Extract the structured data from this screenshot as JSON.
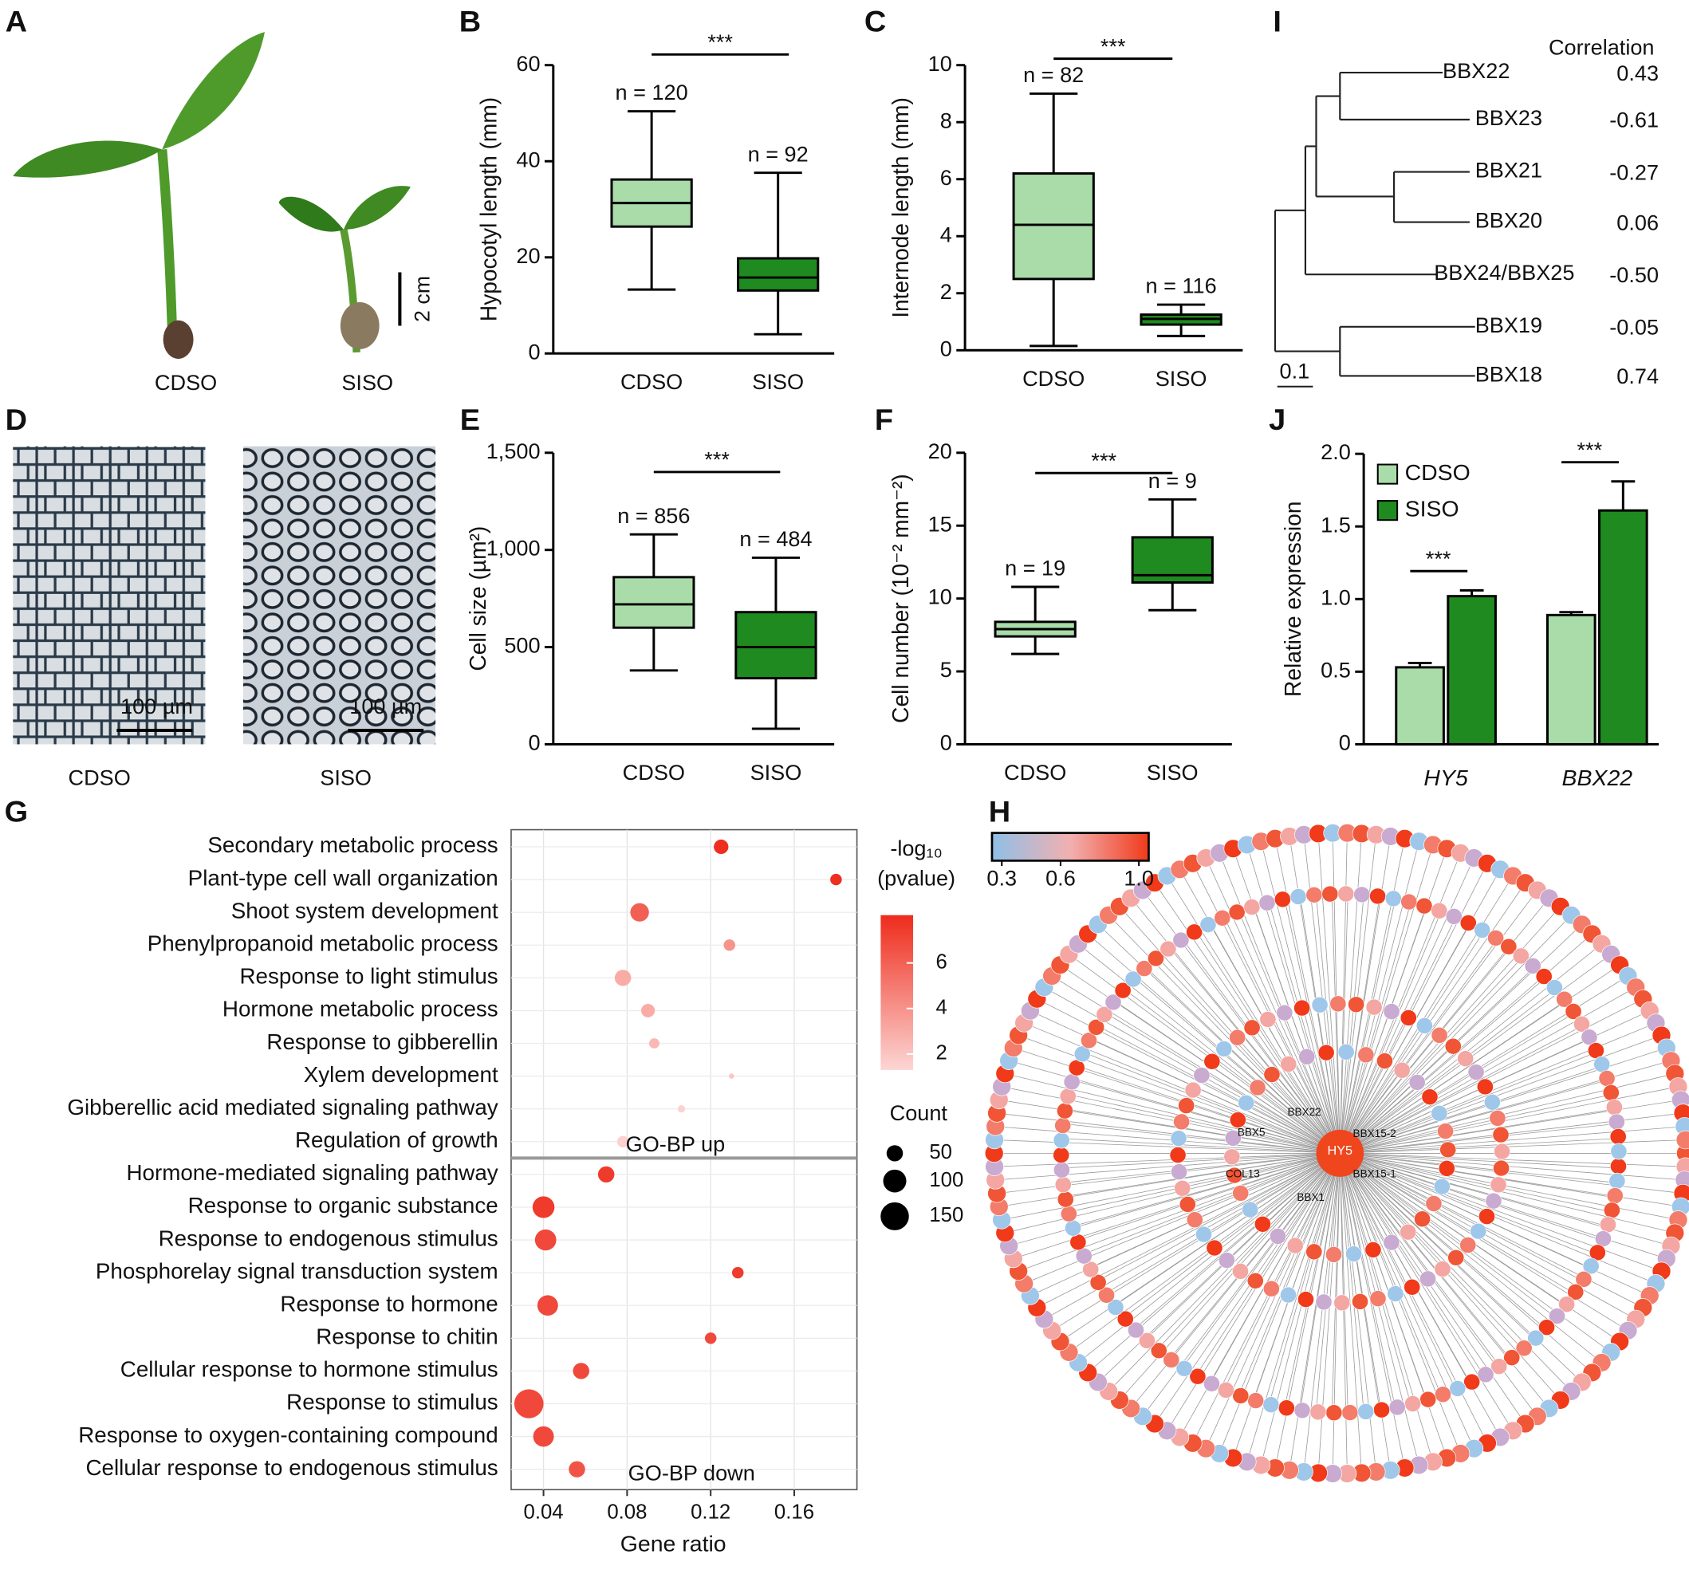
{
  "panels": [
    "A",
    "B",
    "C",
    "D",
    "E",
    "F",
    "G",
    "H",
    "I",
    "J"
  ],
  "panel_A": {
    "labels": [
      "CDSO",
      "SISO"
    ],
    "scale": "2 cm"
  },
  "panel_D": {
    "labels": [
      "CDSO",
      "SISO"
    ],
    "scales": [
      "100 µm",
      "100 µm"
    ]
  },
  "chart_data": [
    {
      "type": "box",
      "y_label": "Hypocotyl length (mm)",
      "categories": [
        "CDSO",
        "SISO"
      ],
      "colors": [
        "#a9dca9",
        "#1f8a1f"
      ],
      "boxes": [
        {
          "min": 13.3,
          "q1": 26.4,
          "median": 31.3,
          "q3": 36.2,
          "max": 50.4
        },
        {
          "min": 4,
          "q1": 13.1,
          "median": 15.8,
          "q3": 19.8,
          "max": 37.6
        }
      ],
      "n_labels": [
        "n = 120",
        "n = 92"
      ],
      "significance": "***",
      "ylim": [
        0,
        60
      ],
      "yticks": [
        0,
        20,
        40,
        60
      ]
    },
    {
      "type": "box",
      "y_label": "Internode length (mm)",
      "categories": [
        "CDSO",
        "SISO"
      ],
      "colors": [
        "#a9dca9",
        "#1f8a1f"
      ],
      "boxes": [
        {
          "min": 0.15,
          "q1": 2.5,
          "median": 4.4,
          "q3": 6.2,
          "max": 9
        },
        {
          "min": 0.5,
          "q1": 0.9,
          "median": 1.1,
          "q3": 1.25,
          "max": 1.6
        }
      ],
      "n_labels": [
        "n = 82",
        "n = 116"
      ],
      "significance": "***",
      "ylim": [
        0,
        10
      ],
      "yticks": [
        0,
        2,
        4,
        6,
        8,
        10
      ]
    },
    {
      "type": "box",
      "y_label": "Cell size (µm²)",
      "categories": [
        "CDSO",
        "SISO"
      ],
      "colors": [
        "#a9dca9",
        "#1f8a1f"
      ],
      "boxes": [
        {
          "min": 380,
          "q1": 600,
          "median": 720,
          "q3": 860,
          "max": 1080
        },
        {
          "min": 80,
          "q1": 340,
          "median": 500,
          "q3": 680,
          "max": 960
        }
      ],
      "n_labels": [
        "n = 856",
        "n = 484"
      ],
      "significance": "***",
      "ylim": [
        0,
        1500
      ],
      "yticks": [
        0,
        500,
        {
          "value": 1000,
          "label": "1,000"
        },
        {
          "value": 1500,
          "label": "1,500"
        }
      ]
    },
    {
      "type": "box",
      "y_label": "Cell number (10⁻² mm⁻²)",
      "categories": [
        "CDSO",
        "SISO"
      ],
      "colors": [
        "#a9dca9",
        "#1f8a1f"
      ],
      "boxes": [
        {
          "min": 6.2,
          "q1": 7.4,
          "median": 7.9,
          "q3": 8.4,
          "max": 10.8
        },
        {
          "min": 9.2,
          "q1": 11.1,
          "median": 11.6,
          "q3": 14.2,
          "max": 16.8
        }
      ],
      "n_labels": [
        "n = 19",
        "n = 9"
      ],
      "significance": "***",
      "ylim": [
        0,
        20
      ],
      "yticks": [
        0,
        5,
        10,
        15,
        20
      ]
    },
    {
      "type": "bar",
      "y_label": "Relative expression",
      "categories": [
        "HY5",
        "BBX22"
      ],
      "series": [
        {
          "name": "CDSO",
          "color": "#a9dca9",
          "values": [
            0.53,
            0.89
          ],
          "errors": [
            0.03,
            0.02
          ]
        },
        {
          "name": "SISO",
          "color": "#1f8a1f",
          "values": [
            1.02,
            1.61
          ],
          "errors": [
            0.04,
            0.2
          ]
        }
      ],
      "significance": [
        "***",
        "***"
      ],
      "ylim": [
        0,
        2
      ],
      "yticks": [
        0,
        0.5,
        {
          "value": 1,
          "label": "1.0"
        },
        1.5,
        {
          "value": 2,
          "label": "2.0"
        }
      ]
    },
    {
      "type": "dot",
      "x_label": "Gene ratio",
      "categories": [
        "Secondary metabolic process",
        "Plant-type cell wall organization",
        "Shoot system development",
        "Phenylpropanoid metabolic process",
        "Response to light stimulus",
        "Hormone metabolic process",
        "Response to gibberellin",
        "Xylem development",
        "Gibberellic acid mediated signaling pathway",
        "Regulation of growth",
        "Hormone-mediated signaling pathway",
        "Response to organic substance",
        "Response to endogenous stimulus",
        "Phosphorelay signal transduction system",
        "Response to hormone",
        "Response to chitin",
        "Cellular response to hormone stimulus",
        "Response to stimulus",
        "Response to oxygen-containing compound",
        "Cellular response to endogenous stimulus"
      ],
      "x": [
        0.125,
        0.18,
        0.086,
        0.129,
        0.078,
        0.09,
        0.093,
        0.13,
        0.106,
        0.078,
        0.07,
        0.04,
        0.041,
        0.133,
        0.042,
        0.12,
        0.058,
        0.033,
        0.04,
        0.056
      ],
      "counts": [
        40,
        25,
        65,
        25,
        50,
        35,
        20,
        5,
        10,
        25,
        50,
        90,
        85,
        25,
        80,
        25,
        50,
        160,
        80,
        50
      ],
      "neglog_p": [
        8,
        8,
        6,
        4,
        3,
        3,
        2.5,
        2,
        1.5,
        1.5,
        7.5,
        7.5,
        7,
        7.5,
        7,
        7,
        7,
        7,
        7,
        6.5
      ],
      "groups": [
        "GO-BP up",
        "GO-BP down"
      ],
      "xlim": [
        0.0245,
        0.19
      ],
      "xticks": [
        0.04,
        0.08,
        0.12,
        0.16
      ],
      "color_title": [
        "-log₁₀",
        "(pvalue)"
      ],
      "color_lim": [
        1.3,
        8.1
      ],
      "color_ticks": [
        2,
        4,
        6
      ],
      "colors": [
        "#fcd6d4",
        "#ee2c1c"
      ],
      "size_title": "Count",
      "size_ticks": [
        50,
        100,
        150
      ]
    },
    {
      "type": "tree",
      "title": "Correlation",
      "leaves": [
        "BBX22",
        "BBX23",
        "BBX21",
        "BBX20",
        "BBX24/BBX25",
        "BBX19",
        "BBX18"
      ],
      "correlations": [
        0.43,
        -0.61,
        -0.27,
        0.06,
        {
          "value": -0.5,
          "label": "-0.50"
        },
        -0.05,
        0.74
      ],
      "highlight": "BBX22",
      "highlight_color": "#e8141a",
      "scale": 0.1
    },
    {
      "type": "network",
      "nodes": [
        "HY5",
        "BBX22",
        "BBX15-2",
        "BBX5",
        "COL13",
        "BBX15-1",
        "BBX1"
      ],
      "color_lim": [
        0.25,
        1.05
      ],
      "color_ticks": [
        0.3,
        0.6,
        {
          "value": 1,
          "label": "1.0"
        }
      ],
      "colors": [
        "#8fbfe8",
        "#f2b0b0",
        "#f03a1a"
      ]
    }
  ]
}
